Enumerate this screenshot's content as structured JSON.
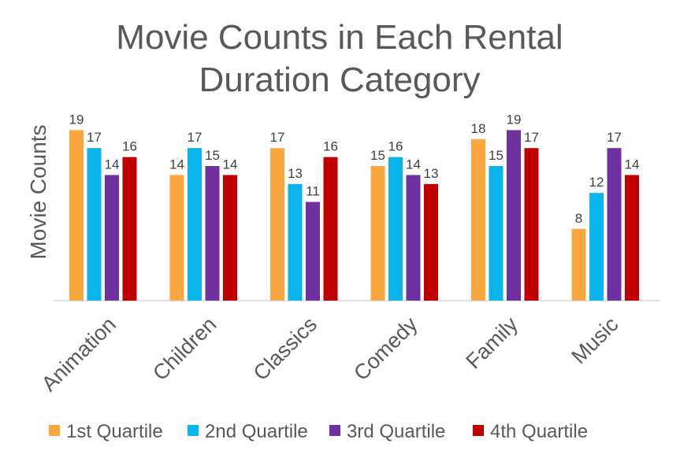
{
  "chart_data": {
    "type": "bar",
    "title_lines": [
      "Movie Counts in Each Rental",
      "Duration Category"
    ],
    "xlabel": "",
    "ylabel": "Movie Counts",
    "ylim": [
      0,
      19
    ],
    "grid": false,
    "legend_position": "bottom",
    "categories": [
      "Animation",
      "Children",
      "Classics",
      "Comedy",
      "Family",
      "Music"
    ],
    "series": [
      {
        "name": "1st Quartile",
        "color": "#FBA73F",
        "values": [
          19,
          14,
          17,
          15,
          18,
          8
        ]
      },
      {
        "name": "2nd Quartile",
        "color": "#0AB4EC",
        "values": [
          17,
          17,
          13,
          16,
          15,
          12
        ]
      },
      {
        "name": "3rd Quartile",
        "color": "#7030A0",
        "values": [
          14,
          15,
          11,
          14,
          19,
          17
        ]
      },
      {
        "name": "4th Quartile",
        "color": "#C00000",
        "values": [
          16,
          14,
          16,
          13,
          17,
          14
        ]
      }
    ]
  }
}
